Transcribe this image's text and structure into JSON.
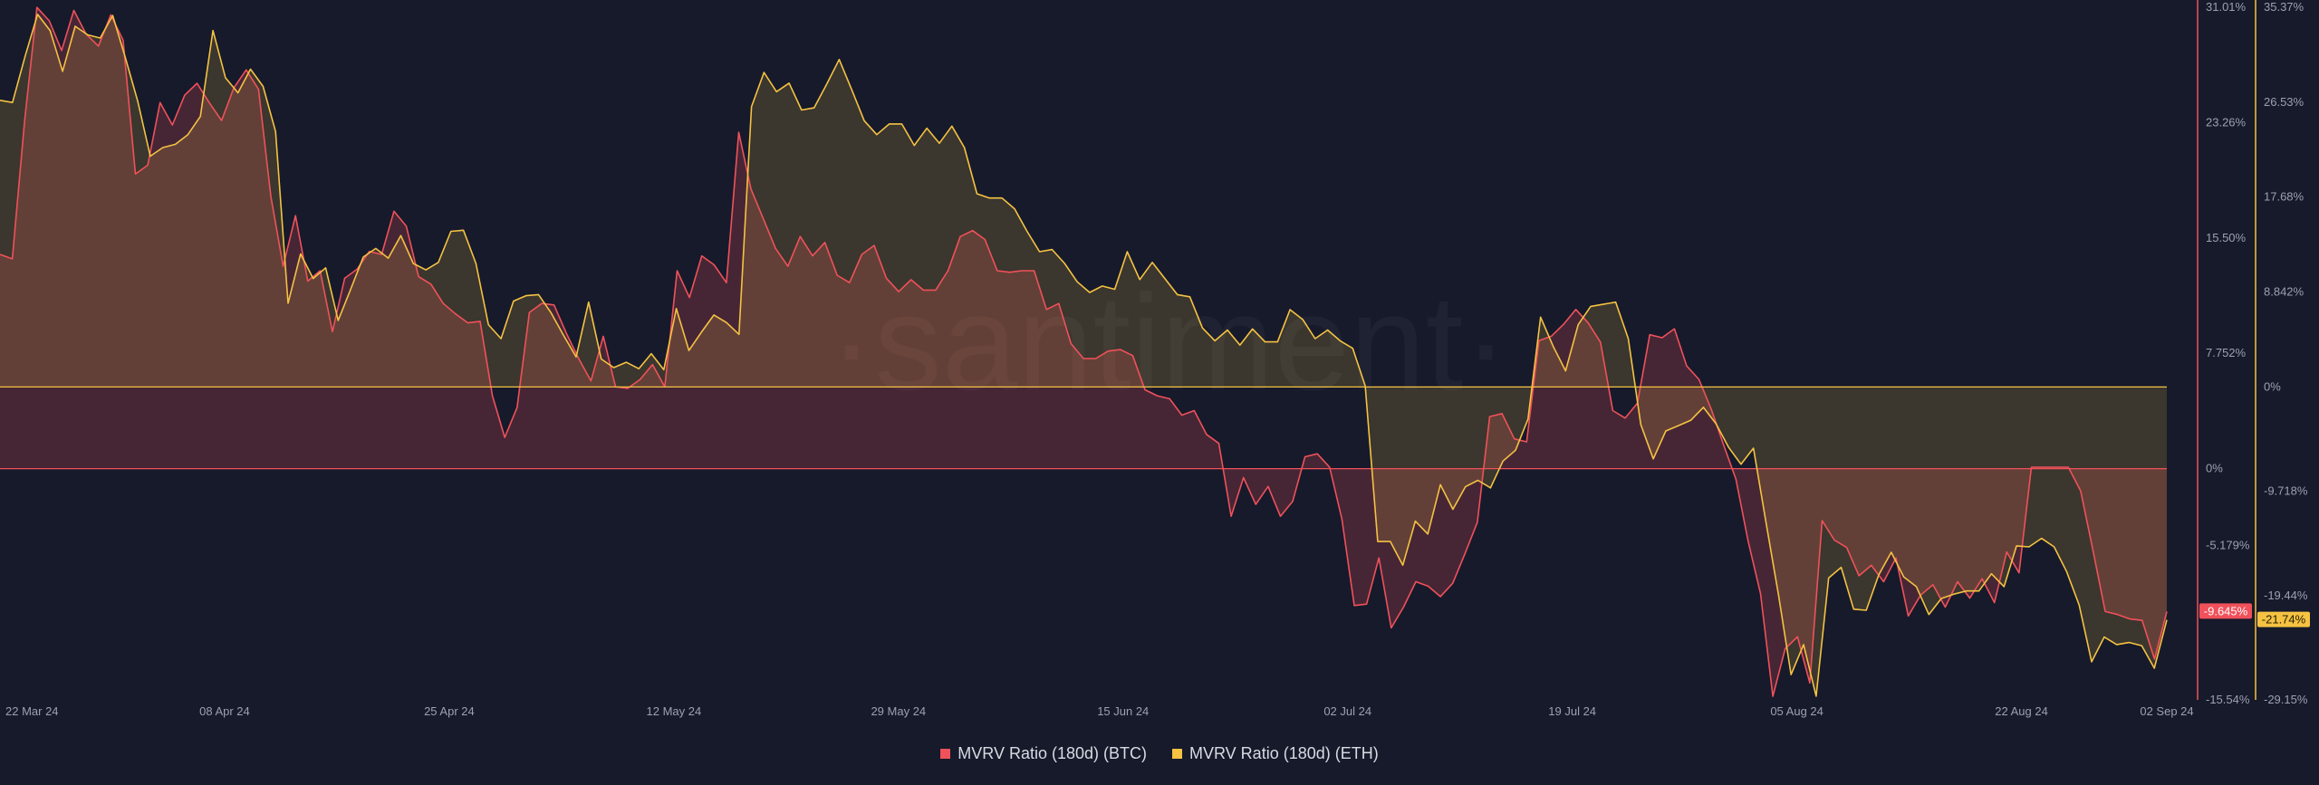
{
  "watermark": "·santiment·",
  "legend": [
    {
      "label": "MVRV Ratio (180d) (BTC)",
      "color": "#f0515a"
    },
    {
      "label": "MVRV Ratio (180d) (ETH)",
      "color": "#f5c242"
    }
  ],
  "chart_data": {
    "type": "area",
    "x_ticks": [
      "22 Mar 24",
      "08 Apr 24",
      "25 Apr 24",
      "12 May 24",
      "29 May 24",
      "15 Jun 24",
      "02 Jul 24",
      "19 Jul 24",
      "05 Aug 24",
      "22 Aug 24",
      "02 Sep 24"
    ],
    "x_start": "2024-03-22",
    "x_end": "2024-09-02",
    "y_left": {
      "label_ticks": [
        "31.01%",
        "23.26%",
        "15.50%",
        "7.752%",
        "0%",
        "-5.179%",
        "-15.54%"
      ],
      "ylim": [
        -15.54,
        31.01
      ],
      "color": "#f0515a"
    },
    "y_right": {
      "label_ticks": [
        "35.37%",
        "26.53%",
        "17.68%",
        "8.842%",
        "0%",
        "-9.718%",
        "-19.44%",
        "-29.15%"
      ],
      "ylim": [
        -29.15,
        35.37
      ],
      "color": "#f5c242"
    },
    "series": [
      {
        "name": "MVRV Ratio (180d) (BTC)",
        "axis": "left",
        "color": "#f0515a",
        "last_value_label": "-9.645%",
        "values": [
          14.4,
          14.1,
          23.4,
          31.0,
          30.1,
          28.1,
          30.8,
          29.2,
          28.4,
          30.5,
          28.8,
          19.8,
          20.4,
          24.6,
          23.1,
          25.1,
          25.9,
          24.6,
          23.4,
          25.6,
          26.8,
          25.5,
          18.3,
          13.6,
          17.0,
          12.6,
          13.3,
          9.2,
          12.8,
          13.4,
          14.6,
          14.4,
          17.3,
          16.3,
          12.9,
          12.4,
          11.1,
          10.4,
          9.8,
          9.9,
          4.9,
          2.1,
          4.1,
          10.5,
          11.1,
          11.0,
          9.1,
          7.4,
          5.9,
          8.9,
          5.5,
          5.4,
          6.0,
          7.0,
          5.5,
          13.3,
          11.5,
          14.3,
          13.7,
          12.5,
          22.6,
          18.8,
          16.8,
          14.8,
          13.6,
          15.6,
          14.3,
          15.2,
          13.0,
          12.5,
          14.4,
          15.0,
          12.8,
          11.9,
          12.7,
          12.0,
          12.0,
          13.3,
          15.6,
          16.0,
          15.4,
          13.3,
          13.2,
          13.3,
          13.3,
          10.7,
          11.1,
          8.4,
          7.4,
          7.4,
          7.9,
          8.0,
          7.6,
          5.3,
          4.9,
          4.7,
          3.6,
          3.9,
          2.3,
          1.7,
          -3.2,
          -0.6,
          -2.4,
          -1.2,
          -3.2,
          -2.2,
          0.8,
          1.0,
          0.1,
          -3.4,
          -9.2,
          -9.1,
          -6.0,
          -10.7,
          -9.3,
          -7.6,
          -7.9,
          -8.6,
          -7.7,
          -5.7,
          -3.6,
          3.5,
          3.7,
          2.0,
          1.8,
          8.6,
          8.9,
          9.7,
          10.7,
          9.8,
          8.5,
          3.9,
          3.4,
          4.4,
          9.0,
          8.8,
          9.4,
          6.9,
          6.0,
          4.0,
          1.6,
          -0.7,
          -4.9,
          -8.4,
          -15.3,
          -12.1,
          -11.3,
          -14.4,
          -3.5,
          -4.8,
          -5.3,
          -7.2,
          -6.5,
          -7.6,
          -6.0,
          -9.9,
          -8.5,
          -7.8,
          -9.3,
          -7.6,
          -8.7,
          -7.4,
          -9.0,
          -5.6,
          -7.0,
          0.1,
          0.1,
          0.1,
          0.1,
          -1.5,
          -5.5,
          -9.6,
          -9.8,
          -10.1,
          -10.2,
          -12.8,
          -9.6
        ]
      },
      {
        "name": "MVRV Ratio (180d) (ETH)",
        "axis": "right",
        "color": "#f5c242",
        "last_value_label": "-21.74%",
        "values": [
          26.7,
          26.5,
          30.8,
          34.7,
          33.2,
          29.4,
          33.6,
          32.8,
          32.5,
          34.6,
          30.7,
          26.6,
          21.5,
          22.3,
          22.6,
          23.5,
          25.2,
          33.2,
          28.8,
          27.4,
          29.6,
          28.0,
          23.8,
          7.8,
          12.4,
          10.1,
          11.1,
          6.2,
          9.1,
          12.1,
          12.9,
          12.0,
          14.1,
          11.5,
          10.9,
          11.6,
          14.5,
          14.6,
          11.5,
          5.8,
          4.5,
          8.0,
          8.5,
          8.6,
          6.9,
          4.8,
          2.8,
          7.9,
          2.6,
          1.8,
          2.3,
          1.7,
          3.1,
          1.6,
          7.3,
          3.4,
          5.1,
          6.7,
          6.0,
          4.9,
          26.1,
          29.3,
          27.5,
          28.3,
          25.8,
          26.0,
          28.2,
          30.5,
          27.7,
          24.8,
          23.5,
          24.5,
          24.5,
          22.5,
          24.1,
          22.7,
          24.3,
          22.3,
          18.0,
          17.6,
          17.6,
          16.6,
          14.5,
          12.6,
          12.8,
          11.5,
          9.8,
          8.8,
          9.4,
          9.1,
          12.6,
          10.0,
          11.6,
          10.1,
          8.6,
          8.4,
          5.5,
          4.3,
          5.3,
          3.9,
          5.4,
          4.2,
          4.2,
          7.2,
          6.3,
          4.5,
          5.3,
          4.3,
          3.6,
          0.1,
          -14.4,
          -14.4,
          -16.6,
          -12.5,
          -13.7,
          -9.1,
          -11.4,
          -9.3,
          -8.7,
          -9.4,
          -6.9,
          -5.9,
          -3.0,
          6.5,
          3.8,
          1.5,
          5.8,
          7.5,
          7.7,
          7.9,
          4.5,
          -3.5,
          -6.7,
          -4.1,
          -3.6,
          -3.1,
          -1.9,
          -3.4,
          -5.6,
          -7.2,
          -5.7,
          -12.6,
          -19.4,
          -26.8,
          -24.0,
          -28.8,
          -17.8,
          -16.8,
          -20.7,
          -20.8,
          -17.5,
          -15.4,
          -17.7,
          -18.6,
          -21.2,
          -19.7,
          -19.3,
          -19.0,
          -19.0,
          -17.4,
          -18.6,
          -14.8,
          -14.9,
          -14.1,
          -14.9,
          -17.2,
          -20.3,
          -25.6,
          -23.3,
          -24.0,
          -23.8,
          -24.1,
          -26.2,
          -21.7
        ]
      }
    ]
  }
}
